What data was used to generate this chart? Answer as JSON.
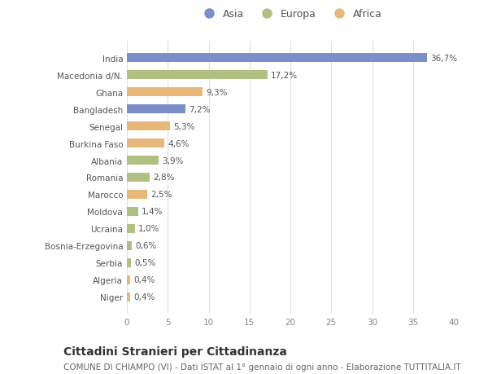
{
  "categories": [
    "Niger",
    "Algeria",
    "Serbia",
    "Bosnia-Erzegovina",
    "Ucraina",
    "Moldova",
    "Marocco",
    "Romania",
    "Albania",
    "Burkina Faso",
    "Senegal",
    "Bangladesh",
    "Ghana",
    "Macedonia d/N.",
    "India"
  ],
  "values": [
    0.4,
    0.4,
    0.5,
    0.6,
    1.0,
    1.4,
    2.5,
    2.8,
    3.9,
    4.6,
    5.3,
    7.2,
    9.3,
    17.2,
    36.7
  ],
  "continents": [
    "Africa",
    "Africa",
    "Europa",
    "Europa",
    "Europa",
    "Europa",
    "Africa",
    "Europa",
    "Europa",
    "Africa",
    "Africa",
    "Asia",
    "Africa",
    "Europa",
    "Asia"
  ],
  "colors": {
    "Asia": "#7b8ec8",
    "Europa": "#b0c080",
    "Africa": "#e8b87a"
  },
  "labels": [
    "0,4%",
    "0,4%",
    "0,5%",
    "0,6%",
    "1,0%",
    "1,4%",
    "2,5%",
    "2,8%",
    "3,9%",
    "4,6%",
    "5,3%",
    "7,2%",
    "9,3%",
    "17,2%",
    "36,7%"
  ],
  "xlim": [
    0,
    40
  ],
  "xticks": [
    0,
    5,
    10,
    15,
    20,
    25,
    30,
    35,
    40
  ],
  "title": "Cittadini Stranieri per Cittadinanza",
  "subtitle": "COMUNE DI CHIAMPO (VI) - Dati ISTAT al 1° gennaio di ogni anno - Elaborazione TUTTITALIA.IT",
  "legend_labels": [
    "Asia",
    "Europa",
    "Africa"
  ],
  "background_color": "#ffffff",
  "bar_height": 0.55,
  "label_fontsize": 7.5,
  "tick_fontsize": 7.5,
  "title_fontsize": 10,
  "subtitle_fontsize": 7.5
}
